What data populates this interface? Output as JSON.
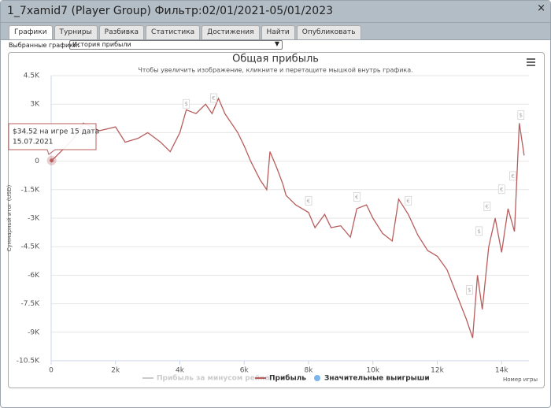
{
  "window": {
    "title": "1_7xamid7 (Player Group) Фильтр:02/01/2021-05/01/2023",
    "close": "×"
  },
  "tabs": [
    "Графики",
    "Турниры",
    "Разбивка",
    "Статистика",
    "Достижения",
    "Найти",
    "Опубликовать"
  ],
  "selector": {
    "label": "Выбранные графики:",
    "value": "История прибыли"
  },
  "chart_data": {
    "type": "line",
    "title": "Общая прибыль",
    "subtitle": "Чтобы увеличить изображение, кликните и перетащите мышкой внутрь графика.",
    "xlabel": "Номер игры",
    "ylabel": "Суммарный итог (USD)",
    "xlim": [
      0,
      14850
    ],
    "ylim": [
      -10500,
      4500
    ],
    "xticks": [
      0,
      {
        "value": 2000,
        "label": "2k"
      },
      {
        "value": 4000,
        "label": "4k"
      },
      {
        "value": 6000,
        "label": "6k"
      },
      {
        "value": 8000,
        "label": "8k"
      },
      {
        "value": 10000,
        "label": "10k"
      },
      {
        "value": 12000,
        "label": "12k"
      },
      {
        "value": 14000,
        "label": "14k"
      }
    ],
    "yticks": [
      {
        "value": 4500,
        "label": "4.5K"
      },
      {
        "value": 3000,
        "label": "3K"
      },
      {
        "value": 1500,
        "label": "1.5K"
      },
      0,
      {
        "value": -1500,
        "label": "-1.5K"
      },
      {
        "value": -3000,
        "label": "-3K"
      },
      {
        "value": -4500,
        "label": "-4.5K"
      },
      {
        "value": -6000,
        "label": "-6K"
      },
      {
        "value": -7500,
        "label": "-7.5K"
      },
      {
        "value": -9000,
        "label": "-9K"
      },
      {
        "value": -10500,
        "label": "-10.5K"
      }
    ],
    "grid": true,
    "series": [
      {
        "name": "Прибыль за минусом рейка",
        "color": "#cccccc",
        "hidden": true
      },
      {
        "name": "Прибыль",
        "color": "#b85c5c",
        "x": [
          0,
          300,
          700,
          1000,
          1500,
          2000,
          2300,
          2700,
          3000,
          3400,
          3700,
          4000,
          4200,
          4500,
          4800,
          5000,
          5200,
          5400,
          5800,
          6000,
          6200,
          6500,
          6700,
          6800,
          7000,
          7200,
          7300,
          7600,
          8000,
          8200,
          8500,
          8700,
          9000,
          9300,
          9500,
          9800,
          10000,
          10300,
          10600,
          10800,
          11100,
          11400,
          11700,
          12000,
          12300,
          12600,
          12900,
          13100,
          13250,
          13400,
          13600,
          13800,
          14000,
          14200,
          14400,
          14550,
          14700
        ],
        "values": [
          0,
          500,
          1200,
          2000,
          1600,
          1800,
          1000,
          1200,
          1500,
          1000,
          500,
          1500,
          2700,
          2500,
          3000,
          2500,
          3300,
          2500,
          1500,
          800,
          0,
          -1000,
          -1500,
          500,
          -300,
          -1200,
          -1800,
          -2300,
          -2700,
          -3500,
          -2800,
          -3500,
          -3400,
          -4000,
          -2500,
          -2300,
          -3000,
          -3800,
          -4200,
          -2000,
          -2800,
          -3900,
          -4700,
          -5000,
          -5700,
          -7000,
          -8300,
          -9300,
          -6000,
          -7800,
          -4500,
          -3000,
          -4800,
          -2500,
          -3700,
          2000,
          300
        ]
      },
      {
        "name": "Значительные выигрыши",
        "color": "#7cb5ec"
      }
    ],
    "flags": [
      {
        "x": 4200,
        "y": 3000,
        "label": "$"
      },
      {
        "x": 5050,
        "y": 3300,
        "label": "€"
      },
      {
        "x": 8000,
        "y": -2100,
        "label": "€"
      },
      {
        "x": 9500,
        "y": -1900,
        "label": "€"
      },
      {
        "x": 11100,
        "y": -2100,
        "label": "€"
      },
      {
        "x": 13000,
        "y": -6800,
        "label": "$"
      },
      {
        "x": 13300,
        "y": -3700,
        "label": "$"
      },
      {
        "x": 13550,
        "y": -2400,
        "label": "€"
      },
      {
        "x": 14000,
        "y": -1500,
        "label": "€"
      },
      {
        "x": 14350,
        "y": -800,
        "label": "€"
      },
      {
        "x": 14600,
        "y": 2400,
        "label": "$"
      }
    ],
    "tooltip": {
      "x": 15,
      "y": 34.52,
      "lines": [
        "$34.52 на игре 15 дата",
        "15.07.2021"
      ]
    }
  }
}
